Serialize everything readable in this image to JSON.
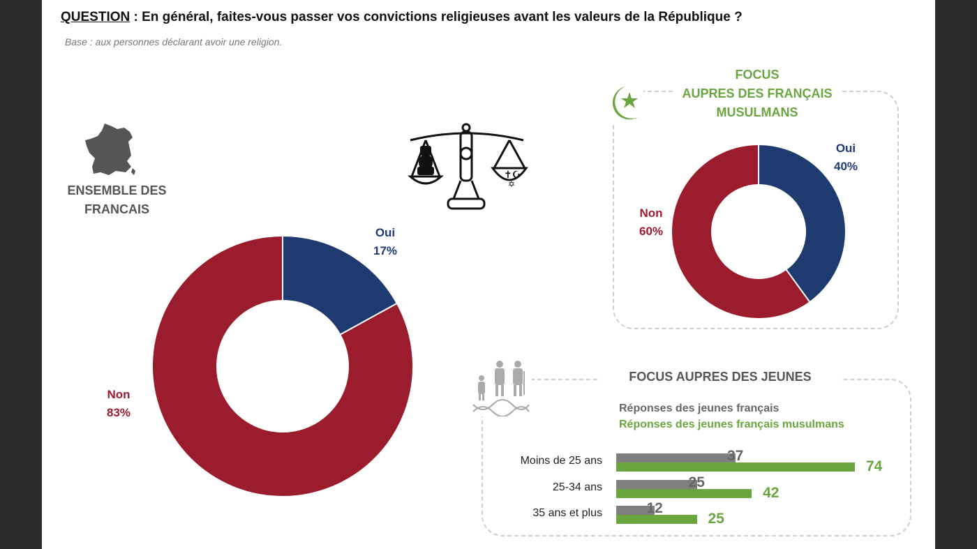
{
  "question": {
    "label": "QUESTION",
    "separator": " : ",
    "text": "En général, faites-vous passer vos convictions religieuses avant les valeurs de la République ?"
  },
  "base": "Base : aux personnes déclarant avoir une religion.",
  "ensemble": {
    "title_line1": "ENSEMBLE DES",
    "title_line2": "FRANCAIS",
    "icon": "france-map-icon"
  },
  "balance_icon": "scales-of-justice-icon",
  "focus_muslims": {
    "title_line1": "FOCUS",
    "title_line2": "AUPRES DES FRANÇAIS",
    "title_line3": "MUSULMANS",
    "icon": "crescent-star-icon"
  },
  "focus_jeunes": {
    "title": "FOCUS AUPRES DES JEUNES",
    "icon": "generations-dna-icon",
    "legend_gray": "Réponses des jeunes français",
    "legend_green": "Réponses des jeunes français musulmans"
  },
  "colors": {
    "oui": "#1f3a6e",
    "non": "#9b1c2c",
    "gray": "#7f7f7f",
    "green": "#6aa640"
  },
  "chart_data": [
    {
      "type": "pie",
      "variant": "donut",
      "title": "ENSEMBLE DES FRANCAIS",
      "slices": [
        {
          "label": "Oui",
          "value": 17,
          "display": "17%"
        },
        {
          "label": "Non",
          "value": 83,
          "display": "83%"
        }
      ]
    },
    {
      "type": "pie",
      "variant": "donut",
      "title": "FOCUS AUPRES DES FRANÇAIS MUSULMANS",
      "slices": [
        {
          "label": "Oui",
          "value": 40,
          "display": "40%"
        },
        {
          "label": "Non",
          "value": 60,
          "display": "60%"
        }
      ]
    },
    {
      "type": "bar",
      "orientation": "horizontal",
      "title": "FOCUS AUPRES DES JEUNES",
      "categories": [
        "Moins de 25 ans",
        "25-34 ans",
        "35 ans et plus"
      ],
      "series": [
        {
          "name": "Réponses des jeunes français",
          "values": [
            37,
            25,
            12
          ]
        },
        {
          "name": "Réponses des jeunes français musulmans",
          "values": [
            74,
            42,
            25
          ]
        }
      ],
      "xlim": [
        0,
        74
      ]
    }
  ]
}
